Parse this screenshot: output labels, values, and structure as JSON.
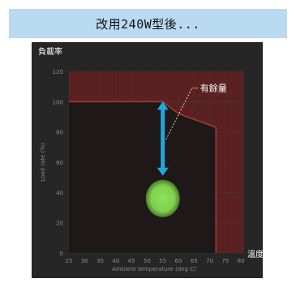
{
  "banner": {
    "text": "改用240W型後..."
  },
  "chart_data": {
    "type": "area",
    "corner_label": "負載率",
    "xlabel": "Ambient temperature (deg C)",
    "ylabel": "Load rate (%)",
    "x_end_label": "溫度",
    "x_ticks": [
      25,
      30,
      35,
      40,
      45,
      50,
      55,
      60,
      65,
      70,
      75,
      80
    ],
    "y_ticks": [
      0,
      20,
      40,
      60,
      80,
      100,
      120
    ],
    "xlim": [
      25,
      81
    ],
    "ylim": [
      0,
      120
    ],
    "grid": true,
    "series": [
      {
        "x": [
          25,
          55,
          60,
          72,
          72
        ],
        "y": [
          100,
          100,
          92,
          83,
          0
        ]
      }
    ],
    "marker": {
      "x": 55,
      "y": 36,
      "color": "#7fd04c"
    },
    "arrow": {
      "x": 55,
      "y_from": 51,
      "y_to": 100,
      "color": "#1fa7e0"
    },
    "annotation": {
      "text": "有餘量",
      "x": 55,
      "y": 75
    },
    "colors": {
      "safe_area": "#171717",
      "excess_area": "#5b2020",
      "boundary": "#a83838"
    }
  }
}
